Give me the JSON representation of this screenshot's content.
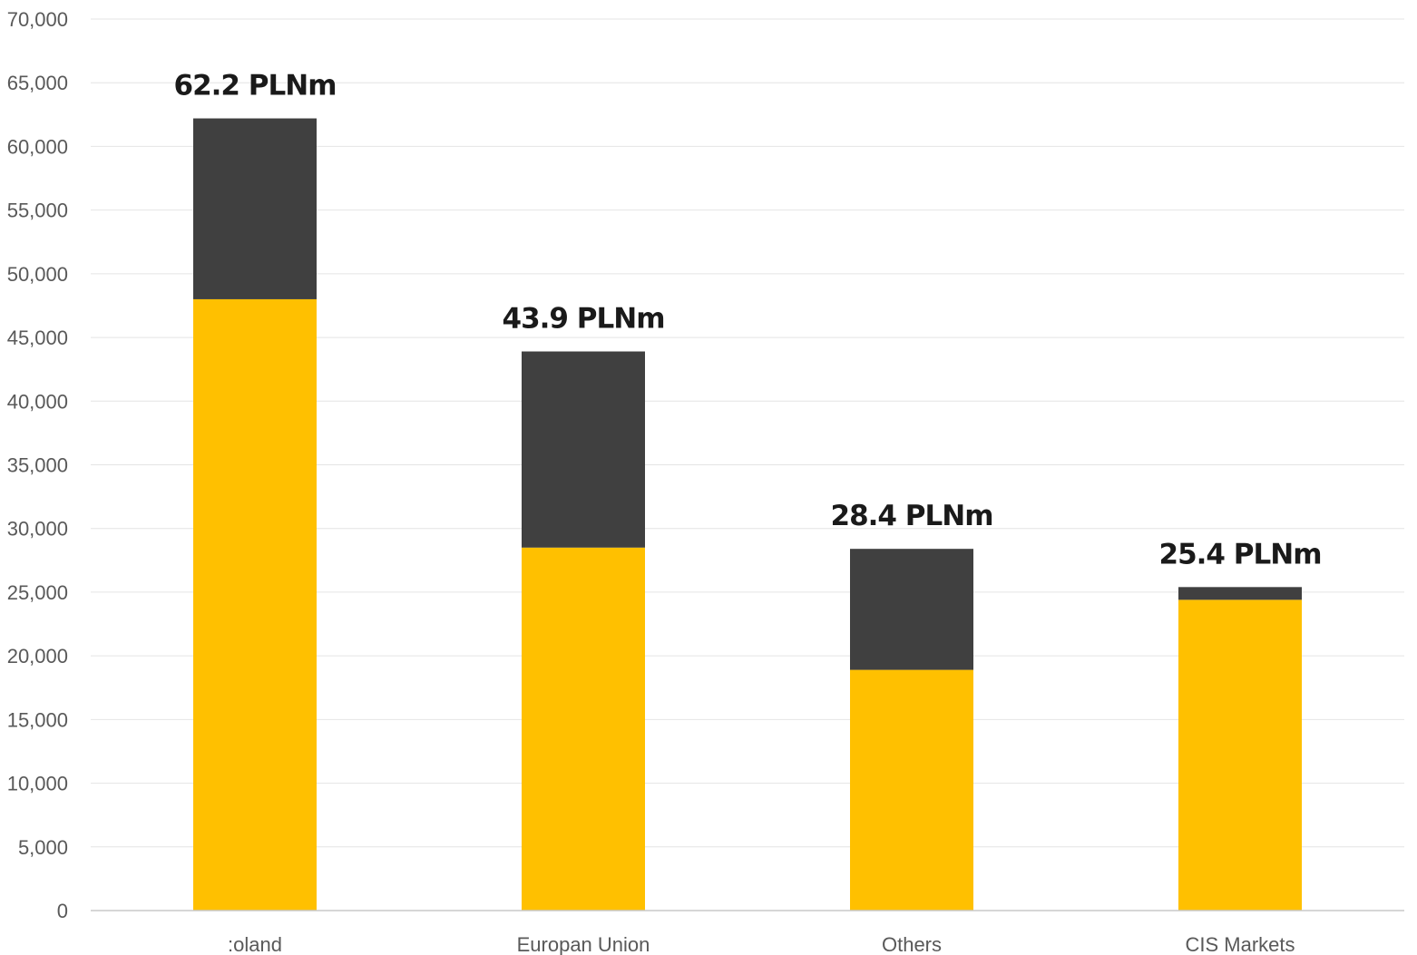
{
  "chart_data": {
    "type": "bar",
    "stacked": true,
    "title": "",
    "xlabel": "",
    "ylabel": "",
    "categories": [
      ":oland",
      "Europan Union",
      "Others",
      "CIS Markets"
    ],
    "series": [
      {
        "values": [
          48000,
          28500,
          18900,
          24400
        ],
        "color": "#FFC000"
      },
      {
        "values": [
          14200,
          15400,
          9500,
          1000
        ],
        "color": "#404040"
      }
    ],
    "total_labels": [
      "62.2 PLNm",
      "43.9 PLNm",
      "28.4 PLNm",
      "25.4 PLNm"
    ],
    "ylim": [
      0,
      70000
    ],
    "yticks": [
      0,
      5000,
      10000,
      15000,
      20000,
      25000,
      30000,
      35000,
      40000,
      45000,
      50000,
      55000,
      60000,
      65000,
      70000
    ],
    "ytick_labels": [
      "0",
      "5,000",
      "10,000",
      "15,000",
      "20,000",
      "25,000",
      "30,000",
      "35,000",
      "40,000",
      "45,000",
      "50,000",
      "55,000",
      "60,000",
      "65,000",
      "70,000"
    ],
    "grid": true,
    "legend": "none"
  }
}
